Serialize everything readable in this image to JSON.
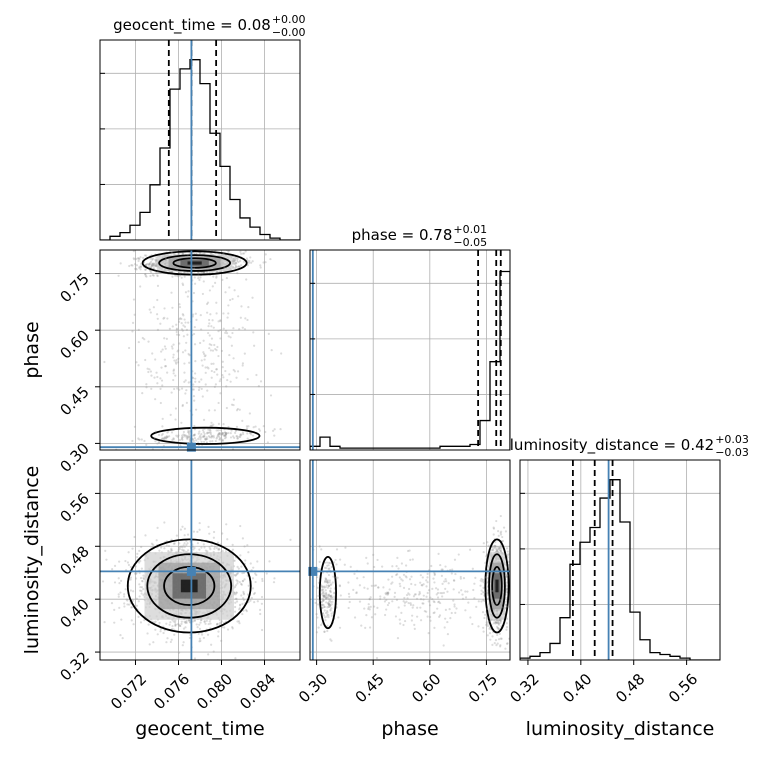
{
  "chart_data": {
    "type": "corner",
    "parameters": [
      "geocent_time",
      "phase",
      "luminosity_distance"
    ],
    "axis_labels": {
      "geocent_time": "geocent_time",
      "phase": "phase",
      "luminosity_distance": "luminosity_distance"
    },
    "titles": {
      "geocent_time": {
        "name": "geocent_time",
        "value": "0.08",
        "plus": "+0.00",
        "minus": "−0.00"
      },
      "phase": {
        "name": "phase",
        "value": "0.78",
        "plus": "+0.01",
        "minus": "−0.05"
      },
      "luminosity_distance": {
        "name": "luminosity_distance",
        "value": "0.42",
        "plus": "+0.03",
        "minus": "−0.03"
      }
    },
    "axis_ranges": {
      "geocent_time": [
        0.0687,
        0.0873
      ],
      "phase": [
        0.2825,
        0.8125
      ],
      "luminosity_distance": [
        0.308,
        0.6105
      ]
    },
    "ticks": {
      "geocent_time": {
        "values": [
          0.072,
          0.076,
          0.08,
          0.084
        ],
        "labels": [
          "0.072",
          "0.076",
          "0.080",
          "0.084"
        ]
      },
      "phase": {
        "values": [
          0.3,
          0.45,
          0.6,
          0.75
        ],
        "labels": [
          "0.30",
          "0.45",
          "0.60",
          "0.75"
        ]
      },
      "luminosity_distance": {
        "values": [
          0.32,
          0.4,
          0.48,
          0.56
        ],
        "labels": [
          "0.32",
          "0.40",
          "0.48",
          "0.56"
        ]
      }
    },
    "truths": {
      "geocent_time": 0.0772,
      "phase": 0.29,
      "luminosity_distance": 0.442
    },
    "quantiles": {
      "geocent_time": [
        0.0751,
        0.0772,
        0.0795
      ],
      "phase": [
        0.728,
        0.776,
        0.788
      ],
      "luminosity_distance": [
        0.388,
        0.421,
        0.448
      ]
    },
    "histograms": {
      "geocent_time": [
        0,
        0.02,
        0.04,
        0.08,
        0.15,
        0.3,
        0.5,
        0.82,
        0.93,
        0.98,
        0.85,
        0.58,
        0.4,
        0.22,
        0.12,
        0.07,
        0.03,
        0.01,
        0,
        0
      ],
      "phase": [
        0.02,
        0.07,
        0.02,
        0.01,
        0.01,
        0.01,
        0.01,
        0.01,
        0.01,
        0.01,
        0.01,
        0.01,
        0.01,
        0.02,
        0.02,
        0.02,
        0.03,
        0.16,
        0.48,
        0.97
      ],
      "luminosity_distance": [
        0.01,
        0.02,
        0.04,
        0.09,
        0.23,
        0.52,
        0.64,
        0.72,
        0.88,
        0.98,
        0.75,
        0.26,
        0.11,
        0.04,
        0.03,
        0.02,
        0.01,
        0,
        0,
        0
      ]
    },
    "grid": true,
    "colors": {
      "truth": "#4682b4",
      "hist": "#000000",
      "points": "#9a9a9a",
      "contour": "#000000"
    }
  }
}
